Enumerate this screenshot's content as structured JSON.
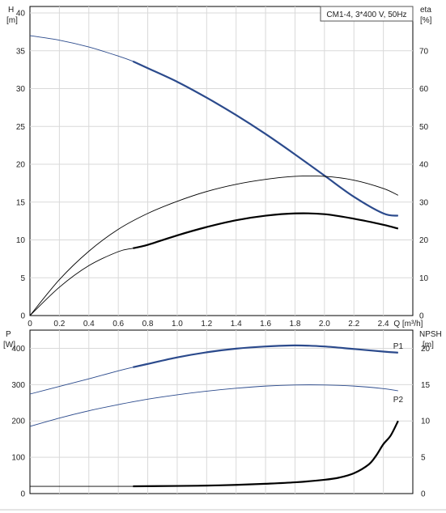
{
  "chart_data": [
    {
      "type": "line",
      "title_box": "CM1-4, 3*400 V, 50Hz",
      "left_axis": {
        "label_top": "H",
        "label_unit": "[m]",
        "ylim": [
          0,
          40
        ],
        "ticks": [
          0,
          5,
          10,
          15,
          20,
          25,
          30,
          35,
          40
        ]
      },
      "right_axis": {
        "label_top": "eta",
        "label_unit": "[%]",
        "ylim": [
          0,
          80
        ],
        "ticks": [
          0,
          10,
          20,
          30,
          40,
          50,
          60,
          70
        ]
      },
      "x_axis": {
        "label": "Q [m³/h]",
        "xlim": [
          0,
          2.6
        ],
        "ticks": [
          "0",
          "0.2",
          "0.4",
          "0.6",
          "0.8",
          "1.0",
          "1.2",
          "1.4",
          "1.6",
          "1.8",
          "2.0",
          "2.2",
          "2.4"
        ]
      },
      "series": [
        {
          "color": "#2b4a8c",
          "axis": "left",
          "x": [
            0,
            0.2,
            0.4,
            0.6,
            0.7,
            0.8,
            1.0,
            1.2,
            1.4,
            1.6,
            1.8,
            2.0,
            2.2,
            2.4,
            2.5
          ],
          "values": [
            37.0,
            36.4,
            35.5,
            34.3,
            33.6,
            32.7,
            30.9,
            28.8,
            26.5,
            24.0,
            21.3,
            18.5,
            15.7,
            13.5,
            13.2
          ],
          "bold_from": 0.7
        },
        {
          "color": "#000000",
          "axis": "right",
          "x": [
            0,
            0.2,
            0.4,
            0.6,
            0.8,
            1.0,
            1.2,
            1.4,
            1.6,
            1.8,
            2.0,
            2.2,
            2.4,
            2.5
          ],
          "values": [
            0,
            9.5,
            17.0,
            22.8,
            27.0,
            30.2,
            32.8,
            34.7,
            36.0,
            36.8,
            36.8,
            35.8,
            33.6,
            31.8
          ]
        },
        {
          "color": "#000000",
          "axis": "right",
          "x": [
            0,
            0.2,
            0.4,
            0.6,
            0.7,
            0.8,
            1.0,
            1.2,
            1.4,
            1.6,
            1.8,
            2.0,
            2.2,
            2.4,
            2.5
          ],
          "values": [
            0,
            7.5,
            13.2,
            16.9,
            17.8,
            18.7,
            21.2,
            23.4,
            25.2,
            26.4,
            27.0,
            26.8,
            25.6,
            24.0,
            23.0
          ],
          "bold_from": 0.7
        }
      ]
    },
    {
      "type": "line",
      "left_axis": {
        "label_top": "P",
        "label_unit": "[W]",
        "ylim": [
          0,
          450
        ],
        "ticks": [
          0,
          100,
          200,
          300,
          400
        ]
      },
      "right_axis": {
        "label_top": "NPSH",
        "label_unit": "[m]",
        "ylim": [
          0,
          22.5
        ],
        "ticks": [
          0,
          5,
          10,
          15,
          20
        ]
      },
      "series": [
        {
          "name": "P1",
          "color": "#2b4a8c",
          "axis": "left",
          "x": [
            0,
            0.2,
            0.4,
            0.6,
            0.7,
            0.8,
            1.0,
            1.2,
            1.4,
            1.6,
            1.8,
            2.0,
            2.2,
            2.4,
            2.5
          ],
          "values": [
            274,
            295,
            316,
            338,
            348,
            357,
            375,
            389,
            399,
            405,
            408,
            405,
            398,
            391,
            388
          ],
          "bold_from": 0.7
        },
        {
          "name": "P2",
          "color": "#2b4a8c",
          "axis": "left",
          "x": [
            0,
            0.2,
            0.4,
            0.6,
            0.8,
            1.0,
            1.2,
            1.4,
            1.6,
            1.8,
            2.0,
            2.2,
            2.4,
            2.5
          ],
          "values": [
            185,
            208,
            228,
            245,
            260,
            272,
            282,
            290,
            296,
            299,
            299,
            296,
            289,
            283
          ]
        },
        {
          "color": "#000000",
          "axis": "right",
          "x": [
            0,
            0.7,
            1.0,
            1.2,
            1.4,
            1.6,
            1.8,
            2.0,
            2.1,
            2.2,
            2.3,
            2.35,
            2.4,
            2.45,
            2.5
          ],
          "values": [
            1.0,
            1.0,
            1.05,
            1.1,
            1.2,
            1.35,
            1.55,
            1.9,
            2.2,
            2.8,
            4.0,
            5.2,
            6.8,
            8.0,
            10.0
          ],
          "bold_from": 0.7
        }
      ]
    }
  ]
}
